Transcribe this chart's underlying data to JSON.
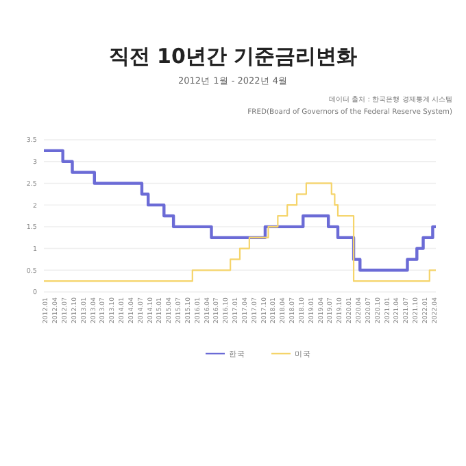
{
  "chart_data": {
    "type": "step",
    "title": "직전 10년간 기준금리변화",
    "subtitle": "2012년 1월 - 2022년 4월",
    "annotations": [
      "데이터 출처 : 한국은행 경제통계 시스템",
      "FRED(Board of Governors of the Federal Reserve System)"
    ],
    "categories": [
      "2012.01",
      null,
      null,
      "2012.04",
      null,
      null,
      "2012.07",
      null,
      null,
      "2012.10",
      null,
      null,
      "2013.01",
      null,
      null,
      "2013.04",
      null,
      null,
      "2013.07",
      null,
      null,
      "2013.10",
      null,
      null,
      "2014.01",
      null,
      null,
      "2014.04",
      null,
      null,
      "2014.07",
      null,
      null,
      "2014.10",
      null,
      null,
      "2015.01",
      null,
      null,
      "2015.04",
      null,
      null,
      "2015.07",
      null,
      null,
      "2015.10",
      null,
      null,
      "2016.01",
      null,
      null,
      "2016.04",
      null,
      null,
      "2016.07",
      null,
      null,
      "2016.10",
      null,
      null,
      "2017.01",
      null,
      null,
      "2017.04",
      null,
      null,
      "2017.07",
      null,
      null,
      "2017.10",
      null,
      null,
      "2018.01",
      null,
      null,
      "2018.04",
      null,
      null,
      "2018.07",
      null,
      null,
      "2018.10",
      null,
      null,
      "2019.01",
      null,
      null,
      "2019.04",
      null,
      null,
      "2019.07",
      null,
      null,
      "2019.10",
      null,
      null,
      "2020.01",
      null,
      null,
      "2020.04",
      null,
      null,
      "2020.07",
      null,
      null,
      "2020.10",
      null,
      null,
      "2021.01",
      null,
      null,
      "2021.04",
      null,
      null,
      "2021.07",
      null,
      null,
      "2021.10",
      null,
      null,
      "2022.01",
      null,
      null,
      "2022.04"
    ],
    "series": [
      {
        "name": "한국",
        "color": "#6b6bd6",
        "values": [
          3.25,
          3.25,
          3.25,
          3.25,
          3.25,
          3.25,
          3,
          3,
          3,
          2.75,
          2.75,
          2.75,
          2.75,
          2.75,
          2.75,
          2.75,
          2.5,
          2.5,
          2.5,
          2.5,
          2.5,
          2.5,
          2.5,
          2.5,
          2.5,
          2.5,
          2.5,
          2.5,
          2.5,
          2.5,
          2.5,
          2.25,
          2.25,
          2,
          2,
          2,
          2,
          2,
          1.75,
          1.75,
          1.75,
          1.5,
          1.5,
          1.5,
          1.5,
          1.5,
          1.5,
          1.5,
          1.5,
          1.5,
          1.5,
          1.5,
          1.5,
          1.25,
          1.25,
          1.25,
          1.25,
          1.25,
          1.25,
          1.25,
          1.25,
          1.25,
          1.25,
          1.25,
          1.25,
          1.25,
          1.25,
          1.25,
          1.25,
          1.25,
          1.5,
          1.5,
          1.5,
          1.5,
          1.5,
          1.5,
          1.5,
          1.5,
          1.5,
          1.5,
          1.5,
          1.5,
          1.75,
          1.75,
          1.75,
          1.75,
          1.75,
          1.75,
          1.75,
          1.75,
          1.5,
          1.5,
          1.5,
          1.25,
          1.25,
          1.25,
          1.25,
          1.25,
          0.75,
          0.75,
          0.5,
          0.5,
          0.5,
          0.5,
          0.5,
          0.5,
          0.5,
          0.5,
          0.5,
          0.5,
          0.5,
          0.5,
          0.5,
          0.5,
          0.5,
          0.75,
          0.75,
          0.75,
          1,
          1,
          1.25,
          1.25,
          1.25,
          1.5
        ]
      },
      {
        "name": "미국",
        "color": "#f5d46a",
        "values": [
          0.25,
          0.25,
          0.25,
          0.25,
          0.25,
          0.25,
          0.25,
          0.25,
          0.25,
          0.25,
          0.25,
          0.25,
          0.25,
          0.25,
          0.25,
          0.25,
          0.25,
          0.25,
          0.25,
          0.25,
          0.25,
          0.25,
          0.25,
          0.25,
          0.25,
          0.25,
          0.25,
          0.25,
          0.25,
          0.25,
          0.25,
          0.25,
          0.25,
          0.25,
          0.25,
          0.25,
          0.25,
          0.25,
          0.25,
          0.25,
          0.25,
          0.25,
          0.25,
          0.25,
          0.25,
          0.25,
          0.25,
          0.5,
          0.5,
          0.5,
          0.5,
          0.5,
          0.5,
          0.5,
          0.5,
          0.5,
          0.5,
          0.5,
          0.5,
          0.75,
          0.75,
          0.75,
          1,
          1,
          1,
          1.25,
          1.25,
          1.25,
          1.25,
          1.25,
          1.25,
          1.5,
          1.5,
          1.5,
          1.75,
          1.75,
          1.75,
          2,
          2,
          2,
          2.25,
          2.25,
          2.25,
          2.5,
          2.5,
          2.5,
          2.5,
          2.5,
          2.5,
          2.5,
          2.5,
          2.25,
          2,
          1.75,
          1.75,
          1.75,
          1.75,
          1.75,
          0.25,
          0.25,
          0.25,
          0.25,
          0.25,
          0.25,
          0.25,
          0.25,
          0.25,
          0.25,
          0.25,
          0.25,
          0.25,
          0.25,
          0.25,
          0.25,
          0.25,
          0.25,
          0.25,
          0.25,
          0.25,
          0.25,
          0.25,
          0.25,
          0.5,
          0.5
        ]
      }
    ],
    "ylim": [
      0,
      3.5
    ],
    "yticks": [
      0,
      0.5,
      1,
      1.5,
      2,
      2.5,
      3,
      3.5
    ],
    "grid": "y",
    "legend": "bottom",
    "marker": "none",
    "line_style": "solid"
  }
}
